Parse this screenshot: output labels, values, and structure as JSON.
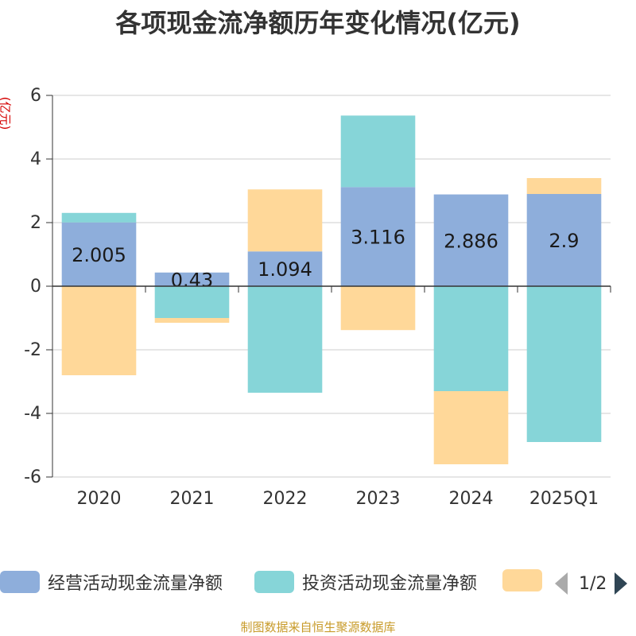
{
  "chart_data": {
    "type": "bar",
    "stacked": true,
    "title": "各项现金流净额历年变化情况(亿元)",
    "ylabel": "(亿元)",
    "ylim": [
      -6,
      6
    ],
    "yticks": [
      6,
      4,
      2,
      0,
      -2,
      -4,
      -6
    ],
    "categories": [
      "2020",
      "2021",
      "2022",
      "2023",
      "2024",
      "2025Q1"
    ],
    "series": [
      {
        "name": "经营活动现金流量净额",
        "color": "#8eaedb",
        "values": [
          2.005,
          0.43,
          1.094,
          3.116,
          2.886,
          2.9
        ],
        "show_labels": true
      },
      {
        "name": "投资活动现金流量净额",
        "color": "#86d5d8",
        "values": [
          0.3,
          -1.0,
          -3.35,
          2.25,
          -3.3,
          -4.9
        ],
        "show_labels": false
      },
      {
        "name": "",
        "color": "#ffd899",
        "values": [
          -2.8,
          -0.15,
          1.95,
          -1.38,
          -2.3,
          0.5
        ],
        "show_labels": false
      }
    ]
  },
  "legend": {
    "items": [
      {
        "label": "经营活动现金流量净额",
        "color": "#8eaedb"
      },
      {
        "label": "投资活动现金流量净额",
        "color": "#86d5d8"
      },
      {
        "label": "",
        "color": "#ffd899"
      }
    ],
    "page": "1/2"
  },
  "source": "制图数据来自恒生聚源数据库"
}
